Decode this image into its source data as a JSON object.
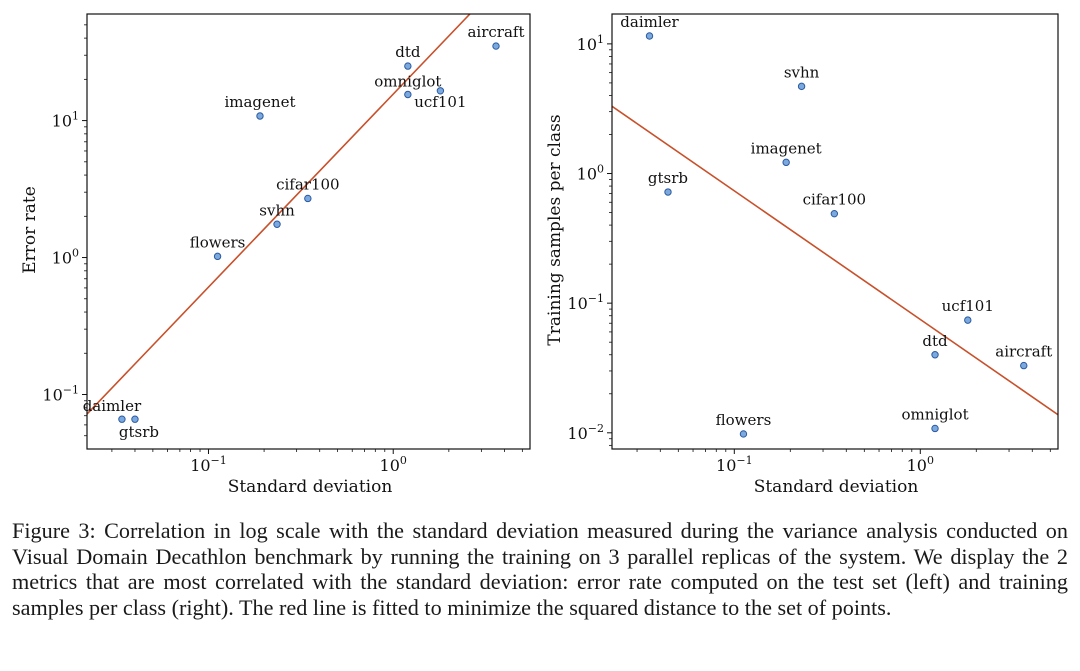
{
  "chart_data": [
    {
      "type": "scatter",
      "title": "",
      "xlabel": "Standard deviation",
      "ylabel": "Error rate",
      "xscale": "log",
      "yscale": "log",
      "xlim": [
        0.022,
        5.5
      ],
      "ylim": [
        0.04,
        60
      ],
      "points": [
        {
          "label": "daimler",
          "x": 0.034,
          "y": 0.066
        },
        {
          "label": "gtsrb",
          "x": 0.04,
          "y": 0.066
        },
        {
          "label": "flowers",
          "x": 0.112,
          "y": 1.02
        },
        {
          "label": "svhn",
          "x": 0.235,
          "y": 1.75
        },
        {
          "label": "cifar100",
          "x": 0.345,
          "y": 2.7
        },
        {
          "label": "imagenet",
          "x": 0.19,
          "y": 10.8
        },
        {
          "label": "omniglot",
          "x": 1.2,
          "y": 15.5
        },
        {
          "label": "ucf101",
          "x": 1.8,
          "y": 16.5
        },
        {
          "label": "dtd",
          "x": 1.2,
          "y": 25
        },
        {
          "label": "aircraft",
          "x": 3.6,
          "y": 35
        }
      ],
      "fit_line": {
        "from": [
          0.022,
          0.072
        ],
        "to": [
          2.6,
          60
        ],
        "color": "#c8502a"
      },
      "xticks": [
        {
          "value": 0.1,
          "base": "10",
          "exp": "−1"
        },
        {
          "value": 1,
          "base": "10",
          "exp": "0"
        }
      ],
      "yticks": [
        {
          "value": 0.1,
          "base": "10",
          "exp": "−1"
        },
        {
          "value": 1,
          "base": "10",
          "exp": "0"
        },
        {
          "value": 10,
          "base": "10",
          "exp": "1"
        }
      ]
    },
    {
      "type": "scatter",
      "title": "",
      "xlabel": "Standard deviation",
      "ylabel": "Training samples per class",
      "xscale": "log",
      "yscale": "log",
      "xlim": [
        0.022,
        5.5
      ],
      "ylim": [
        0.0075,
        17
      ],
      "points": [
        {
          "label": "daimler",
          "x": 0.035,
          "y": 11.5
        },
        {
          "label": "svhn",
          "x": 0.23,
          "y": 4.7
        },
        {
          "label": "imagenet",
          "x": 0.19,
          "y": 1.22
        },
        {
          "label": "gtsrb",
          "x": 0.044,
          "y": 0.72
        },
        {
          "label": "cifar100",
          "x": 0.345,
          "y": 0.49
        },
        {
          "label": "ucf101",
          "x": 1.8,
          "y": 0.074
        },
        {
          "label": "dtd",
          "x": 1.2,
          "y": 0.04
        },
        {
          "label": "aircraft",
          "x": 3.6,
          "y": 0.033
        },
        {
          "label": "flowers",
          "x": 0.112,
          "y": 0.0098
        },
        {
          "label": "omniglot",
          "x": 1.2,
          "y": 0.0108
        }
      ],
      "fit_line": {
        "from": [
          0.022,
          3.3
        ],
        "to": [
          5.5,
          0.0138
        ],
        "color": "#c8502a"
      },
      "xticks": [
        {
          "value": 0.1,
          "base": "10",
          "exp": "−1"
        },
        {
          "value": 1,
          "base": "10",
          "exp": "0"
        }
      ],
      "yticks": [
        {
          "value": 0.01,
          "base": "10",
          "exp": "−2"
        },
        {
          "value": 0.1,
          "base": "10",
          "exp": "−1"
        },
        {
          "value": 1,
          "base": "10",
          "exp": "0"
        },
        {
          "value": 10,
          "base": "10",
          "exp": "1"
        }
      ]
    }
  ],
  "caption": "Figure 3: Correlation in log scale with the standard deviation measured during the variance analysis conducted on Visual Domain Decathlon benchmark by running the training on 3 parallel replicas of the system. We display the 2 metrics that are most correlated with the standard deviation: error rate computed on the test set (left) and training samples per class (right). The red line is fitted to minimize the squared distance to the set of points."
}
